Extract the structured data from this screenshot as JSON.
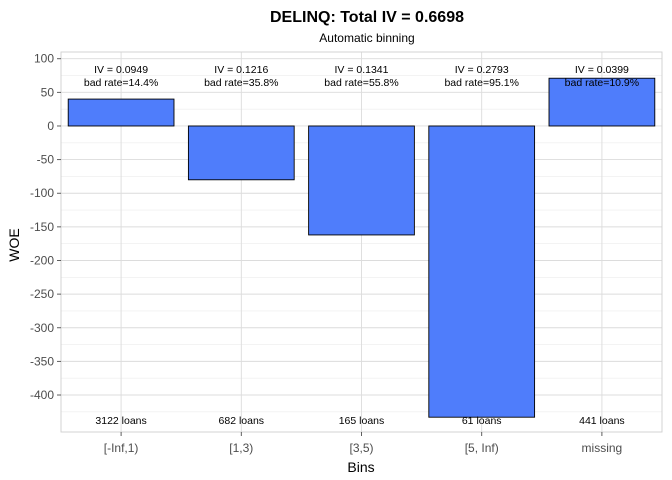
{
  "chart_data": {
    "type": "bar",
    "title": "DELINQ: Total IV = 0.6698",
    "subtitle": "Automatic binning",
    "xlabel": "Bins",
    "ylabel": "WOE",
    "categories": [
      "[-Inf,1)",
      "[1,3)",
      "[3,5)",
      "[5, Inf)",
      "missing"
    ],
    "values": [
      40,
      -80,
      -162,
      -433,
      71
    ],
    "iv_labels": [
      "IV = 0.0949",
      "IV = 0.1216",
      "IV = 0.1341",
      "IV = 0.2793",
      "IV = 0.0399"
    ],
    "bad_rate_labels": [
      "bad rate=14.4%",
      "bad rate=35.8%",
      "bad rate=55.8%",
      "bad rate=95.1%",
      "bad rate=10.9%"
    ],
    "count_labels": [
      "3122 loans",
      "682 loans",
      "165 loans",
      "61 loans",
      "441 loans"
    ],
    "ylim": [
      -455,
      110
    ],
    "yticks": [
      100,
      50,
      0,
      -50,
      -100,
      -150,
      -200,
      -250,
      -300,
      -350,
      -400
    ],
    "grid": true,
    "bar_color": "#4f7dfb"
  }
}
